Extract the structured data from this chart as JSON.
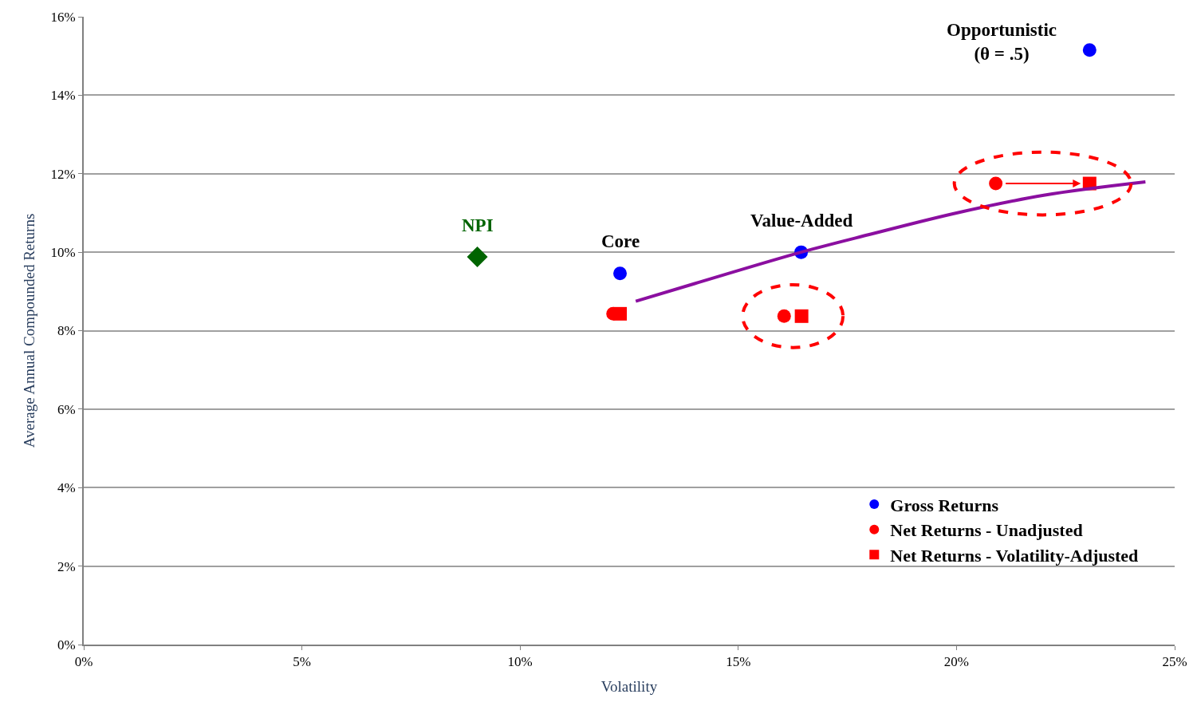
{
  "chart_data": {
    "type": "scatter",
    "xlabel": "Volatility",
    "ylabel": "Average Annual Compounded Returns",
    "series": [
      {
        "name": "Gross Returns",
        "color": "#0000ff",
        "marker": "circle",
        "x": [
          12.29,
          16.44,
          23.05
        ],
        "values": [
          9.46,
          10.0,
          15.15
        ]
      },
      {
        "name": "Net Returns - Unadjusted",
        "color": "#ff0000",
        "marker": "circle",
        "x": [
          12.13,
          16.05,
          20.9
        ],
        "values": [
          8.43,
          8.37,
          11.75
        ]
      },
      {
        "name": "Net Returns - Volatility-Adjusted",
        "color": "#ff0000",
        "marker": "square",
        "x": [
          12.29,
          16.45,
          23.05
        ],
        "values": [
          8.43,
          8.37,
          11.75
        ]
      },
      {
        "color": "#006400",
        "marker": "diamond",
        "x": [
          9.02
        ],
        "values": [
          9.88
        ]
      },
      {
        "type": "line",
        "color": "#8b0fa0",
        "marker": "none",
        "x": [
          12.65,
          14.0,
          16.44,
          18.0,
          20.0,
          22.0,
          24.33
        ],
        "values": [
          8.75,
          9.2,
          10.0,
          10.45,
          11.0,
          11.45,
          11.79
        ]
      }
    ],
    "annotations": [
      {
        "text": "NPI",
        "x": 9.02,
        "y": 9.88
      },
      {
        "text": "Core",
        "x": 12.29,
        "y": 9.46
      },
      {
        "text": "Value-Added",
        "x": 16.44,
        "y": 10.0
      },
      {
        "text": "Opportunistic\n(θ = .5)",
        "x": 23.05,
        "y": 15.15
      }
    ],
    "xlim": [
      0,
      25
    ],
    "xticks": [
      {
        "value": 0,
        "label": "0%"
      },
      {
        "value": 5,
        "label": "5%"
      },
      {
        "value": 10,
        "label": "10%"
      },
      {
        "value": 15,
        "label": "15%"
      },
      {
        "value": 20,
        "label": "20%"
      },
      {
        "value": 25,
        "label": "25%"
      }
    ],
    "ylim": [
      0,
      16
    ],
    "yticks": [
      {
        "value": 0,
        "label": "0%"
      },
      {
        "value": 2,
        "label": "2%"
      },
      {
        "value": 4,
        "label": "4%"
      },
      {
        "value": 6,
        "label": "6%"
      },
      {
        "value": 8,
        "label": "8%"
      },
      {
        "value": 10,
        "label": "10%"
      },
      {
        "value": 12,
        "label": "12%"
      },
      {
        "value": 14,
        "label": "14%"
      },
      {
        "value": 16,
        "label": "16%"
      }
    ],
    "grid": "y",
    "legend": "bottom right"
  }
}
